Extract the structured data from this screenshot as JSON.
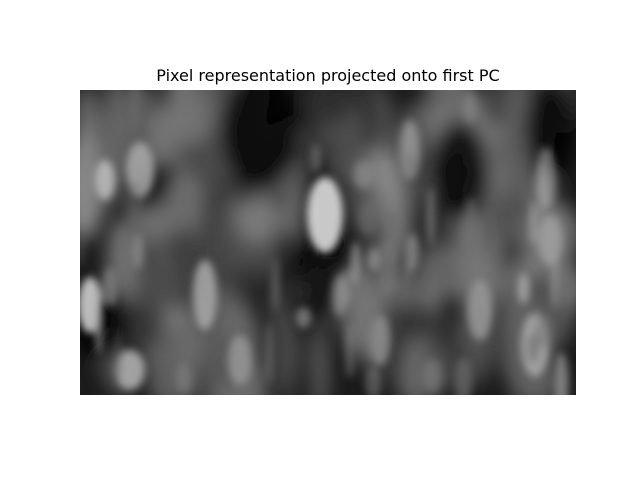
{
  "chart_data": {
    "type": "heatmap",
    "title": "Pixel representation projected onto first PC",
    "colormap": "gray",
    "axes_visible": false,
    "grid": false
  }
}
